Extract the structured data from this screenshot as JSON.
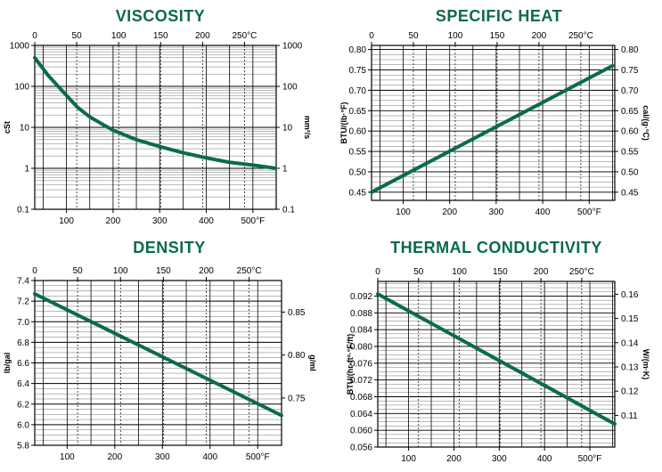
{
  "colors": {
    "title": "#0a6b48",
    "curve": "#0b6b4a",
    "grid": "#000000"
  },
  "chart_data": [
    {
      "id": "viscosity",
      "type": "line",
      "title": "VISCOSITY",
      "yscale": "log",
      "top_axis": {
        "unit": "°C",
        "ticks": [
          "0",
          "50",
          "100",
          "150",
          "200",
          "250°C"
        ],
        "values": [
          0,
          50,
          100,
          150,
          200,
          250
        ]
      },
      "bottom_axis": {
        "unit": "°F",
        "ticks": [
          "100",
          "200",
          "300",
          "400",
          "500°F"
        ],
        "values": [
          100,
          200,
          300,
          400,
          500
        ]
      },
      "left_axis": {
        "label": "cSt",
        "ticks": [
          "0.1",
          "1",
          "10",
          "100",
          "1000"
        ],
        "values": [
          0.1,
          1,
          10,
          100,
          1000
        ]
      },
      "right_axis": {
        "label": "mm²/s",
        "ticks": [
          "0.1",
          "1",
          "10",
          "100",
          "1000"
        ],
        "values": [
          0.1,
          1,
          10,
          100,
          1000
        ]
      },
      "xlim_f": [
        32,
        550
      ],
      "ylim": [
        0.1,
        1000
      ],
      "series": [
        {
          "x": [
            32,
            60,
            100,
            125,
            150,
            200,
            250,
            300,
            350,
            400,
            450,
            500,
            550
          ],
          "values": [
            500,
            190,
            60,
            30,
            18,
            8.5,
            5,
            3.4,
            2.4,
            1.8,
            1.4,
            1.2,
            1.0
          ]
        }
      ]
    },
    {
      "id": "specific-heat",
      "type": "line",
      "title": "SPECIFIC HEAT",
      "top_axis": {
        "unit": "°C",
        "ticks": [
          "0",
          "50",
          "100",
          "150",
          "200",
          "250°C"
        ],
        "values": [
          0,
          50,
          100,
          150,
          200,
          250
        ]
      },
      "bottom_axis": {
        "unit": "°F",
        "ticks": [
          "100",
          "200",
          "300",
          "400",
          "500°F"
        ],
        "values": [
          100,
          200,
          300,
          400,
          500
        ]
      },
      "left_axis": {
        "label": "BTU/(lb·°F)",
        "ticks": [
          "0.45",
          "0.50",
          "0.55",
          "0.60",
          "0.65",
          "0.70",
          "0.75",
          "0.80"
        ],
        "values": [
          0.45,
          0.5,
          0.55,
          0.6,
          0.65,
          0.7,
          0.75,
          0.8
        ]
      },
      "right_axis": {
        "label": "cal/(g·°C)",
        "ticks": [
          "0.45",
          "0.50",
          "0.55",
          "0.60",
          "0.65",
          "0.70",
          "0.75",
          "0.80"
        ],
        "values": [
          0.45,
          0.5,
          0.55,
          0.6,
          0.65,
          0.7,
          0.75,
          0.8
        ]
      },
      "xlim_f": [
        32,
        555
      ],
      "ylim": [
        0.43,
        0.81
      ],
      "series": [
        {
          "x": [
            32,
            550
          ],
          "values": [
            0.45,
            0.76
          ]
        }
      ]
    },
    {
      "id": "density",
      "type": "line",
      "title": "DENSITY",
      "top_axis": {
        "unit": "°C",
        "ticks": [
          "0",
          "50",
          "100",
          "150",
          "200",
          "250°C"
        ],
        "values": [
          0,
          50,
          100,
          150,
          200,
          250
        ]
      },
      "bottom_axis": {
        "unit": "°F",
        "ticks": [
          "100",
          "200",
          "300",
          "400",
          "500°F"
        ],
        "values": [
          100,
          200,
          300,
          400,
          500
        ]
      },
      "left_axis": {
        "label": "lb/gal",
        "ticks": [
          "5.8",
          "6.0",
          "6.2",
          "6.4",
          "6.6",
          "6.8",
          "7.0",
          "7.2",
          "7.4"
        ],
        "values": [
          5.8,
          6.0,
          6.2,
          6.4,
          6.6,
          6.8,
          7.0,
          7.2,
          7.4
        ]
      },
      "right_axis": {
        "label": "g/ml",
        "ticks": [
          "0.75",
          "0.80",
          "0.85"
        ],
        "values": [
          0.75,
          0.8,
          0.85
        ]
      },
      "right_to_left": 8.3454,
      "xlim_f": [
        32,
        550
      ],
      "ylim": [
        5.8,
        7.4
      ],
      "series": [
        {
          "x": [
            32,
            550
          ],
          "values": [
            7.27,
            6.09
          ]
        }
      ]
    },
    {
      "id": "thermal-conductivity",
      "type": "line",
      "title": "THERMAL CONDUCTIVITY",
      "top_axis": {
        "unit": "°C",
        "ticks": [
          "0",
          "50",
          "100",
          "150",
          "200",
          "250°C"
        ],
        "values": [
          0,
          50,
          100,
          150,
          200,
          250
        ]
      },
      "bottom_axis": {
        "unit": "°F",
        "ticks": [
          "100",
          "200",
          "300",
          "400",
          "500°F"
        ],
        "values": [
          100,
          200,
          300,
          400,
          500
        ]
      },
      "left_axis": {
        "label": "BTU/(hr·ft²·°F/ft)",
        "ticks": [
          "0.056",
          "0.060",
          "0.064",
          "0.068",
          "0.072",
          "0.076",
          "0.080",
          "0.084",
          "0.088",
          "0.092"
        ],
        "values": [
          0.056,
          0.06,
          0.064,
          0.068,
          0.072,
          0.076,
          0.08,
          0.084,
          0.088,
          0.092
        ]
      },
      "right_axis": {
        "label": "W/(m·K)",
        "ticks": [
          "0.11",
          "0.12",
          "0.13",
          "0.14",
          "0.15",
          "0.16"
        ],
        "values": [
          0.11,
          0.12,
          0.13,
          0.14,
          0.15,
          0.16
        ]
      },
      "right_to_left": 0.5778,
      "xlim_f": [
        32,
        555
      ],
      "ylim": [
        0.056,
        0.0955
      ],
      "series": [
        {
          "x": [
            32,
            555
          ],
          "values": [
            0.0925,
            0.0615
          ]
        }
      ]
    }
  ]
}
